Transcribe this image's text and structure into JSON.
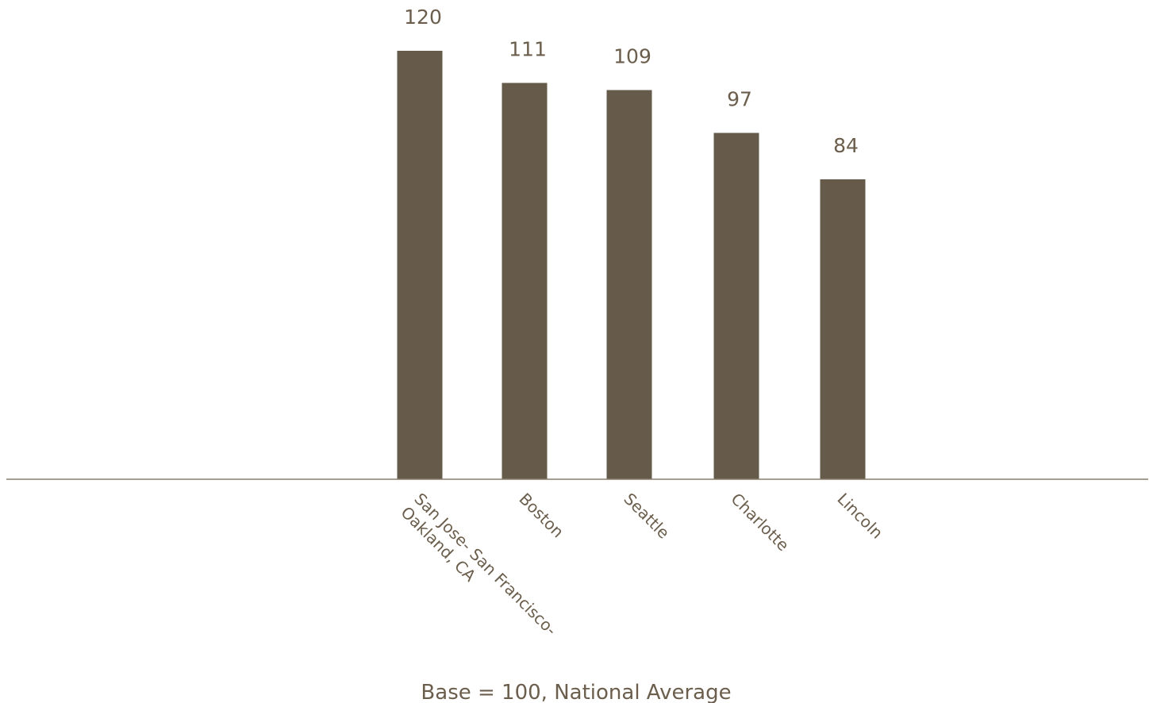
{
  "chart_data": {
    "type": "bar",
    "categories": [
      [
        "San Jose- San Francisco-",
        "Oakland, CA"
      ],
      [
        "Boston"
      ],
      [
        "Seattle"
      ],
      [
        "Charlotte"
      ],
      [
        "Lincoln"
      ]
    ],
    "values": [
      120,
      111,
      109,
      97,
      84
    ],
    "data_labels": [
      "120",
      "111",
      "109",
      "97",
      "84"
    ],
    "ylim": [
      0,
      132
    ],
    "grid": false,
    "legend": "none",
    "bar_color": "#665b4a",
    "axis_color": "#8a7e6e",
    "text_color": "#6b5e4c",
    "caption": "Base = 100, National Average"
  }
}
